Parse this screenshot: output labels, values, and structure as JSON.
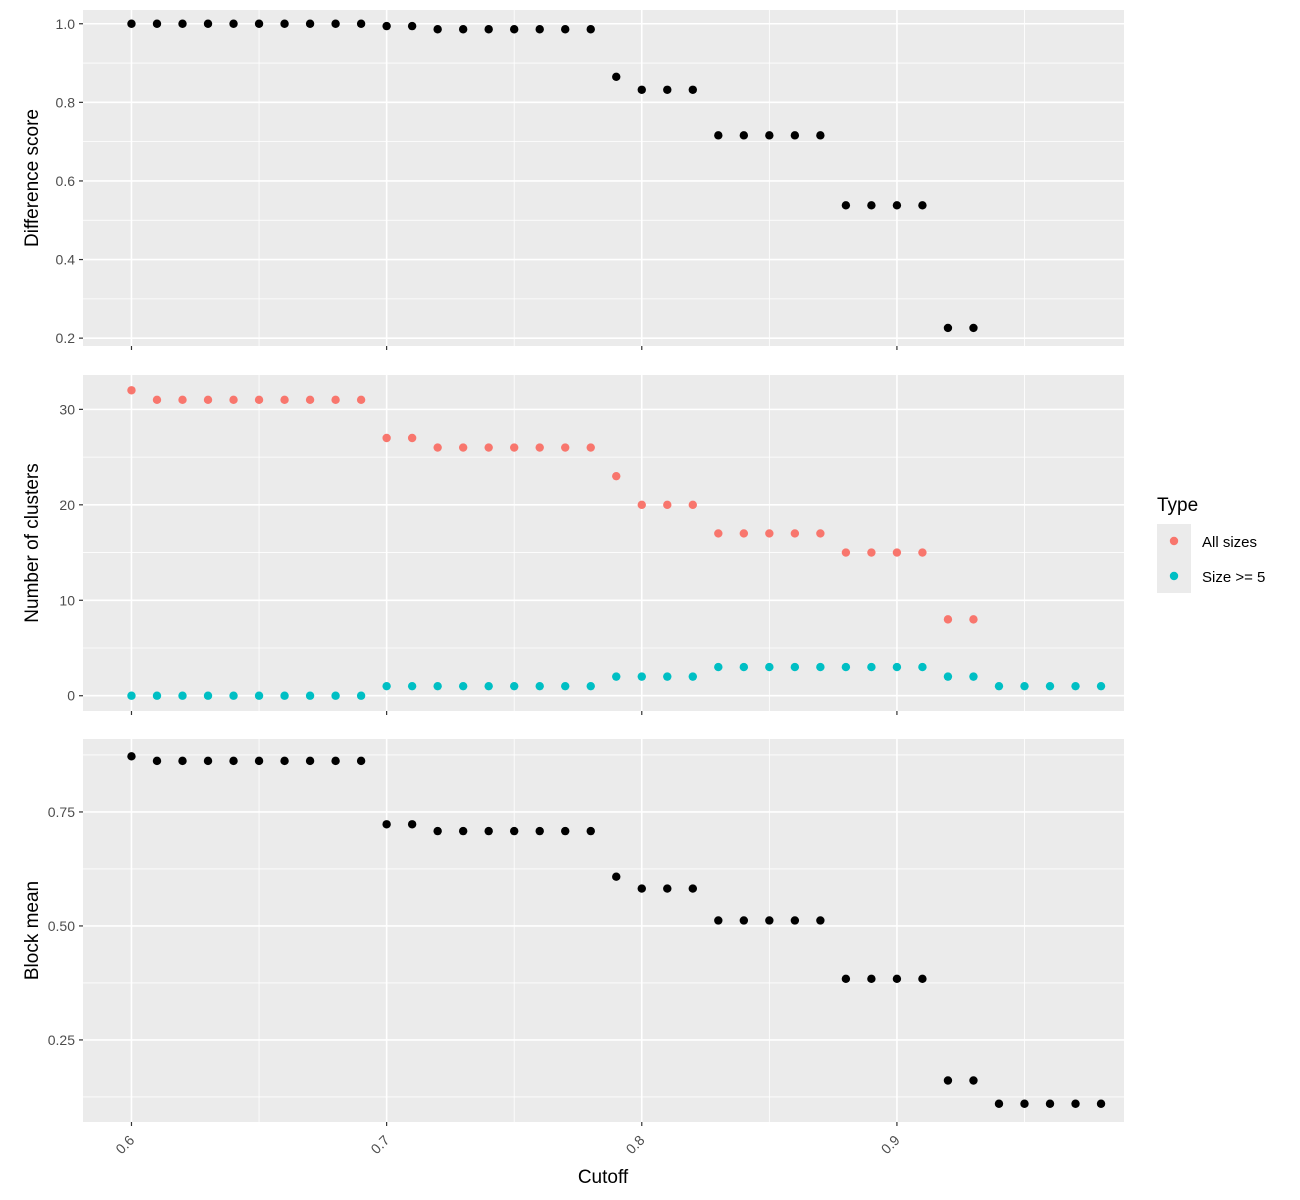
{
  "chart_data": {
    "type": "scatter",
    "xlabel": "Cutoff",
    "x_ticks": [
      0.6,
      0.7,
      0.8,
      0.9
    ],
    "x_tick_labels": [
      "0.6",
      "0.7",
      "0.8",
      "0.9"
    ],
    "xlim": [
      0.581,
      0.989
    ],
    "legend": {
      "title": "Type",
      "position": "right",
      "entries": [
        {
          "name": "All sizes",
          "color": "#F8766D"
        },
        {
          "name": "Size >= 5",
          "color": "#00BFC4"
        }
      ]
    },
    "grid": true,
    "panels": [
      {
        "ylabel": "Difference score",
        "ylim": [
          0.18,
          1.035
        ],
        "y_ticks": [
          0.2,
          0.4,
          0.6,
          0.8,
          1.0
        ],
        "y_tick_labels": [
          "0.2",
          "0.4",
          "0.6",
          "0.8",
          "1.0"
        ],
        "series": [
          {
            "color": "#000000",
            "x": [
              0.6,
              0.61,
              0.62,
              0.63,
              0.64,
              0.65,
              0.66,
              0.67,
              0.68,
              0.69,
              0.7,
              0.71,
              0.72,
              0.73,
              0.74,
              0.75,
              0.76,
              0.77,
              0.78,
              0.79,
              0.8,
              0.81,
              0.82,
              0.83,
              0.84,
              0.85,
              0.86,
              0.87,
              0.88,
              0.89,
              0.9,
              0.91,
              0.92,
              0.93
            ],
            "y": [
              1.0,
              1.0,
              1.0,
              1.0,
              1.0,
              1.0,
              1.0,
              1.0,
              1.0,
              1.0,
              0.994,
              0.994,
              0.986,
              0.986,
              0.986,
              0.986,
              0.986,
              0.986,
              0.986,
              0.865,
              0.832,
              0.832,
              0.832,
              0.716,
              0.716,
              0.716,
              0.716,
              0.716,
              0.538,
              0.538,
              0.538,
              0.538,
              0.226,
              0.226
            ]
          }
        ]
      },
      {
        "ylabel": "Number of clusters",
        "ylim": [
          -1.6,
          33.6
        ],
        "y_ticks": [
          0,
          10,
          20,
          30
        ],
        "y_tick_labels": [
          "0",
          "10",
          "20",
          "30"
        ],
        "series": [
          {
            "name": "All sizes",
            "color": "#F8766D",
            "x": [
              0.6,
              0.61,
              0.62,
              0.63,
              0.64,
              0.65,
              0.66,
              0.67,
              0.68,
              0.69,
              0.7,
              0.71,
              0.72,
              0.73,
              0.74,
              0.75,
              0.76,
              0.77,
              0.78,
              0.79,
              0.8,
              0.81,
              0.82,
              0.83,
              0.84,
              0.85,
              0.86,
              0.87,
              0.88,
              0.89,
              0.9,
              0.91,
              0.92,
              0.93
            ],
            "y": [
              32,
              31,
              31,
              31,
              31,
              31,
              31,
              31,
              31,
              31,
              27,
              27,
              26,
              26,
              26,
              26,
              26,
              26,
              26,
              23,
              20,
              20,
              20,
              17,
              17,
              17,
              17,
              17,
              15,
              15,
              15,
              15,
              8,
              8
            ]
          },
          {
            "name": "Size >= 5",
            "color": "#00BFC4",
            "x": [
              0.6,
              0.61,
              0.62,
              0.63,
              0.64,
              0.65,
              0.66,
              0.67,
              0.68,
              0.69,
              0.7,
              0.71,
              0.72,
              0.73,
              0.74,
              0.75,
              0.76,
              0.77,
              0.78,
              0.79,
              0.8,
              0.81,
              0.82,
              0.83,
              0.84,
              0.85,
              0.86,
              0.87,
              0.88,
              0.89,
              0.9,
              0.91,
              0.92,
              0.93,
              0.94,
              0.95,
              0.96,
              0.97,
              0.98
            ],
            "y": [
              0,
              0,
              0,
              0,
              0,
              0,
              0,
              0,
              0,
              0,
              1,
              1,
              1,
              1,
              1,
              1,
              1,
              1,
              1,
              2,
              2,
              2,
              2,
              3,
              3,
              3,
              3,
              3,
              3,
              3,
              3,
              3,
              2,
              2,
              1,
              1,
              1,
              1,
              1
            ]
          }
        ]
      },
      {
        "ylabel": "Block mean",
        "ylim": [
          0.07,
          0.91
        ],
        "y_ticks": [
          0.25,
          0.5,
          0.75
        ],
        "y_tick_labels": [
          "0.25",
          "0.50",
          "0.75"
        ],
        "series": [
          {
            "color": "#000000",
            "x": [
              0.6,
              0.61,
              0.62,
              0.63,
              0.64,
              0.65,
              0.66,
              0.67,
              0.68,
              0.69,
              0.7,
              0.71,
              0.72,
              0.73,
              0.74,
              0.75,
              0.76,
              0.77,
              0.78,
              0.79,
              0.8,
              0.81,
              0.82,
              0.83,
              0.84,
              0.85,
              0.86,
              0.87,
              0.88,
              0.89,
              0.9,
              0.91,
              0.92,
              0.93,
              0.94,
              0.95,
              0.96,
              0.97,
              0.98
            ],
            "y": [
              0.872,
              0.862,
              0.862,
              0.862,
              0.862,
              0.862,
              0.862,
              0.862,
              0.862,
              0.862,
              0.723,
              0.723,
              0.708,
              0.708,
              0.708,
              0.708,
              0.708,
              0.708,
              0.708,
              0.608,
              0.582,
              0.582,
              0.582,
              0.512,
              0.512,
              0.512,
              0.512,
              0.512,
              0.384,
              0.384,
              0.384,
              0.384,
              0.161,
              0.161,
              0.11,
              0.11,
              0.11,
              0.11,
              0.11
            ]
          }
        ]
      }
    ]
  }
}
